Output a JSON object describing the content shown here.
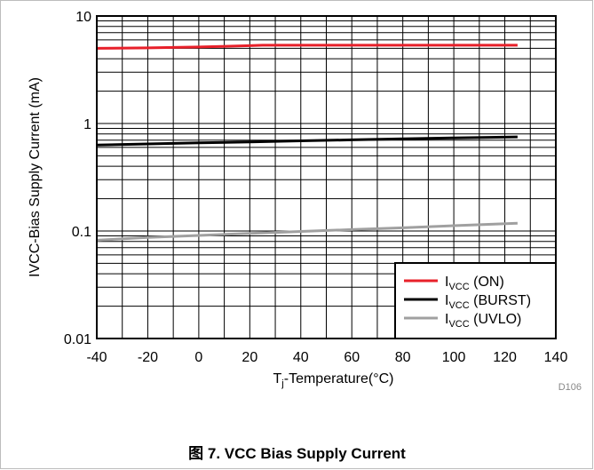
{
  "figure": {
    "caption": "图 7. VCC Bias Supply Current",
    "code": "D106"
  },
  "chart_data": {
    "type": "line",
    "title": "",
    "xlabel": {
      "pre": "T",
      "sub": "j",
      "post": "-Temperature(°C)"
    },
    "ylabel": "IVCC-Bias Supply Current (mA)",
    "xlim": [
      -40,
      140
    ],
    "ylim": [
      0.01,
      10
    ],
    "yscale": "log",
    "grid": true,
    "x_ticks": [
      -40,
      -20,
      0,
      20,
      40,
      60,
      80,
      100,
      120,
      140
    ],
    "y_ticks": [
      0.01,
      0.1,
      1,
      10
    ],
    "y_tick_labels": [
      "0.01",
      "0.1",
      "1",
      "10"
    ],
    "legend_position": "bottom-right",
    "series": [
      {
        "name": "IVCC (ON)",
        "label_main": "I",
        "label_sub": "VCC",
        "label_rest": " (ON)",
        "color": "#e8202a",
        "x": [
          -40,
          -20,
          0,
          20,
          25,
          40,
          60,
          80,
          100,
          125
        ],
        "y": [
          5.0,
          5.05,
          5.15,
          5.3,
          5.35,
          5.35,
          5.35,
          5.35,
          5.35,
          5.35
        ]
      },
      {
        "name": "IVCC (BURST)",
        "label_main": "I",
        "label_sub": "VCC",
        "label_rest": " (BURST)",
        "color": "#000000",
        "x": [
          -40,
          -20,
          0,
          20,
          40,
          60,
          80,
          100,
          125
        ],
        "y": [
          0.63,
          0.645,
          0.66,
          0.675,
          0.69,
          0.705,
          0.72,
          0.735,
          0.75
        ]
      },
      {
        "name": "IVCC (UVLO)",
        "label_main": "I",
        "label_sub": "VCC",
        "label_rest": " (UVLO)",
        "color": "#a0a0a0",
        "x": [
          -40,
          -20,
          0,
          20,
          40,
          60,
          80,
          100,
          125
        ],
        "y": [
          0.082,
          0.087,
          0.091,
          0.095,
          0.099,
          0.103,
          0.107,
          0.112,
          0.118
        ]
      }
    ]
  }
}
